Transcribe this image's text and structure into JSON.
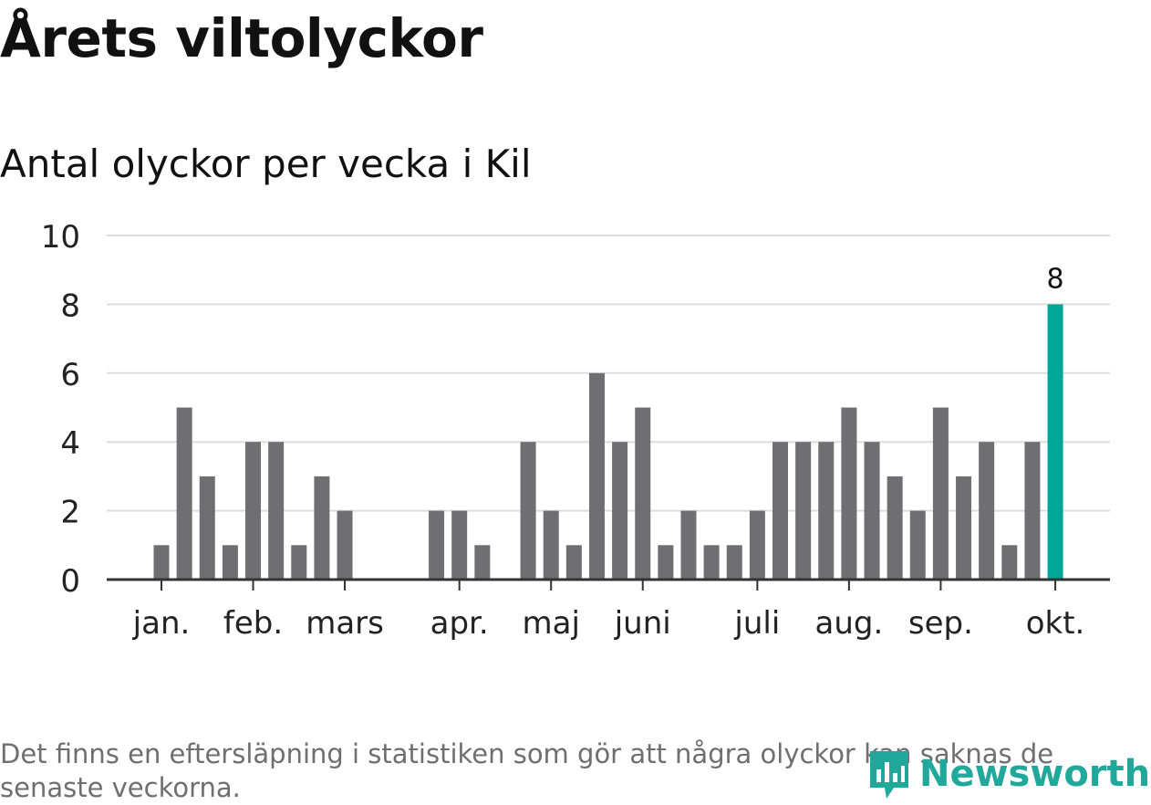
{
  "title": "Årets viltolyckor",
  "footnote": "Det finns en eftersläpning i statistiken som gör att några olyckor kan saknas de senaste veckorna.",
  "brand": {
    "name": "Newsworthy",
    "color": "#20a89a"
  },
  "colors": {
    "bar": "#6f6e73",
    "highlight": "#00a797",
    "grid": "#dddddd",
    "axis": "#333333"
  },
  "chart_data": {
    "type": "bar",
    "title": "Antal olyckor per vecka i Kil",
    "xlabel": "",
    "ylabel": "",
    "ylim": [
      0,
      10
    ],
    "yticks": [
      0,
      2,
      4,
      6,
      8,
      10
    ],
    "weeks": [
      1,
      2,
      3,
      4,
      5,
      6,
      7,
      8,
      9,
      10,
      11,
      12,
      13,
      14,
      15,
      16,
      17,
      18,
      19,
      20,
      21,
      22,
      23,
      24,
      25,
      26,
      27,
      28,
      29,
      30,
      31,
      32,
      33,
      34,
      35,
      36,
      37,
      38,
      39,
      40
    ],
    "values": [
      1,
      5,
      3,
      1,
      4,
      4,
      1,
      3,
      2,
      0,
      0,
      0,
      2,
      2,
      1,
      0,
      4,
      2,
      1,
      6,
      4,
      5,
      1,
      2,
      1,
      1,
      2,
      4,
      4,
      4,
      5,
      4,
      3,
      2,
      5,
      3,
      4,
      1,
      4,
      8
    ],
    "highlight_index": 39,
    "highlight_label": "8",
    "month_labels": [
      {
        "label": "jan.",
        "week": 1
      },
      {
        "label": "feb.",
        "week": 5
      },
      {
        "label": "mars",
        "week": 9
      },
      {
        "label": "apr.",
        "week": 14
      },
      {
        "label": "maj",
        "week": 18
      },
      {
        "label": "juni",
        "week": 22
      },
      {
        "label": "juli",
        "week": 27
      },
      {
        "label": "aug.",
        "week": 31
      },
      {
        "label": "sep.",
        "week": 35
      },
      {
        "label": "okt.",
        "week": 40
      }
    ]
  }
}
